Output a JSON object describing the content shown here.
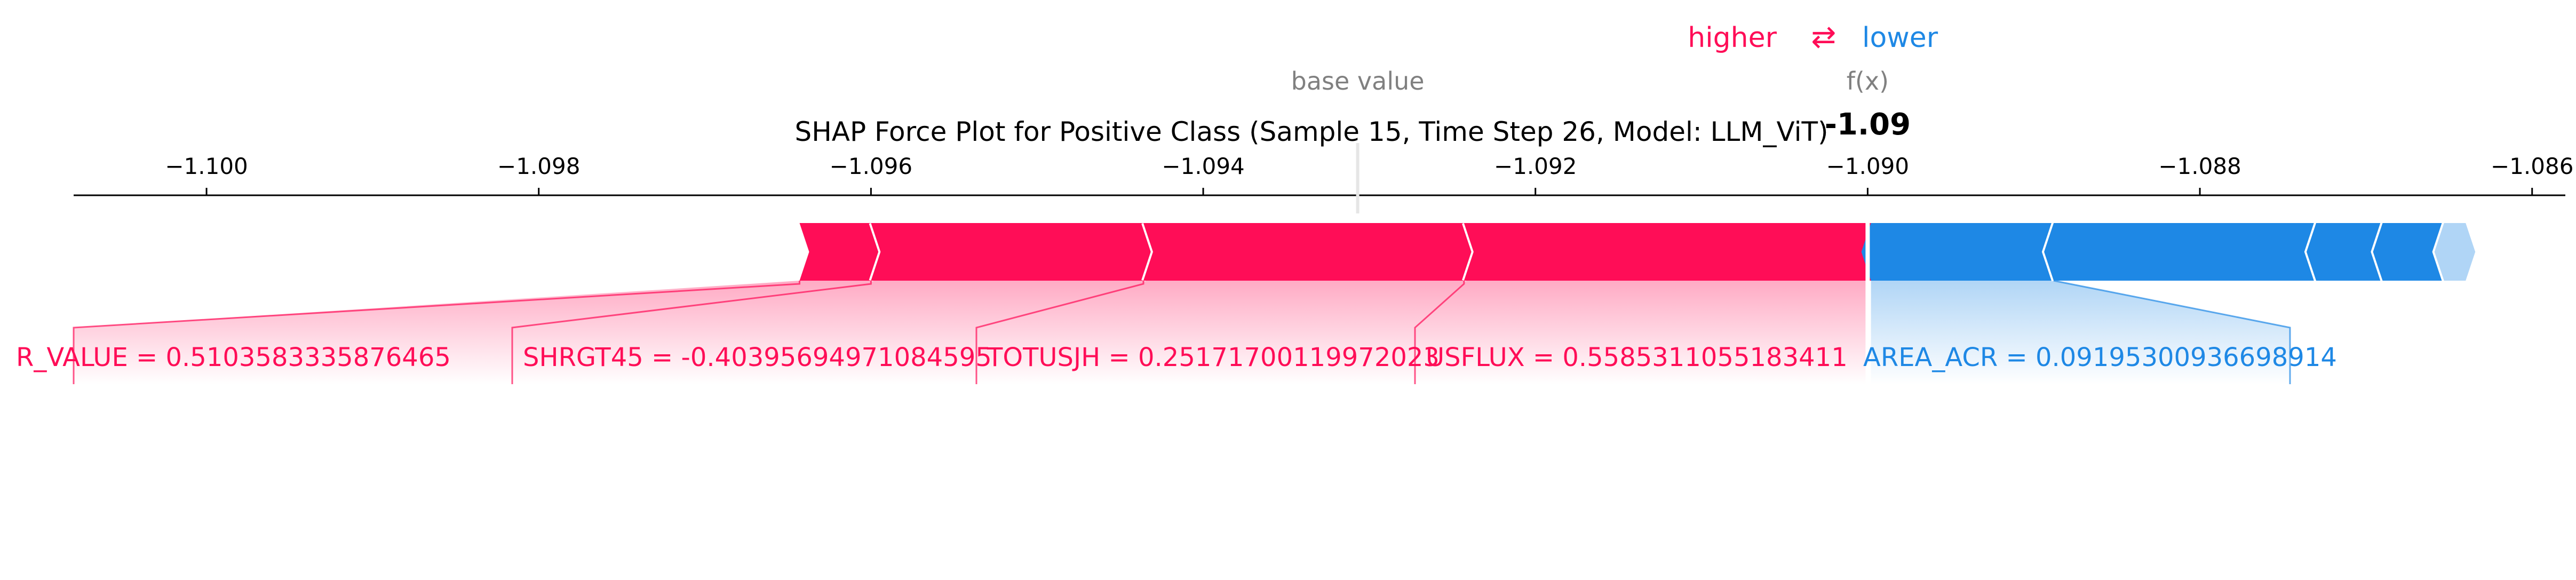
{
  "chart_data": {
    "type": "shap-force",
    "title": "SHAP Force Plot for Positive Class (Sample 15, Time Step 26, Model: LLM_ViT)",
    "legend": {
      "higher": "higher",
      "lower": "lower",
      "arrows": "⇄"
    },
    "labels": {
      "base_value": "base value",
      "fx": "f(x)"
    },
    "base_value": -1.09307,
    "output_value": -1.09,
    "output_display": "-1.09",
    "xlim": [
      -1.1008,
      -1.0858
    ],
    "ticks": [
      {
        "value": -1.1,
        "label": "−1.100"
      },
      {
        "value": -1.098,
        "label": "−1.098"
      },
      {
        "value": -1.096,
        "label": "−1.096"
      },
      {
        "value": -1.094,
        "label": "−1.094"
      },
      {
        "value": -1.092,
        "label": "−1.092"
      },
      {
        "value": -1.09,
        "label": "−1.090"
      },
      {
        "value": -1.088,
        "label": "−1.088"
      },
      {
        "value": -1.086,
        "label": "−1.086"
      }
    ],
    "positive_segments": [
      {
        "name": "USFLUX = 0.5585311055183411",
        "start": -1.09243,
        "end": -1.08998
      },
      {
        "name": "TOTUSJH = 0.25171700119972023",
        "start": -1.09436,
        "end": -1.09243
      },
      {
        "name": "SHRGT45 = -0.40395694971084595",
        "start": -1.096,
        "end": -1.09436
      },
      {
        "name": "R_VALUE = 0.5103583335876465",
        "start": -1.09643,
        "end": -1.096
      }
    ],
    "negative_segments": [
      {
        "name": "AREA_ACR = 0.09195300936698914",
        "start": -1.08998,
        "end": -1.08888
      },
      {
        "name": "",
        "start": -1.08888,
        "end": -1.0873
      },
      {
        "name": "",
        "start": -1.0873,
        "end": -1.0869
      },
      {
        "name": "",
        "start": -1.0869,
        "end": -1.08653
      },
      {
        "name": "",
        "start": -1.08653,
        "end": -1.0864
      }
    ],
    "colors": {
      "positive": "#ff0d57",
      "negative": "#1e88e5",
      "base_text": "#808080",
      "title": "#000000"
    }
  }
}
